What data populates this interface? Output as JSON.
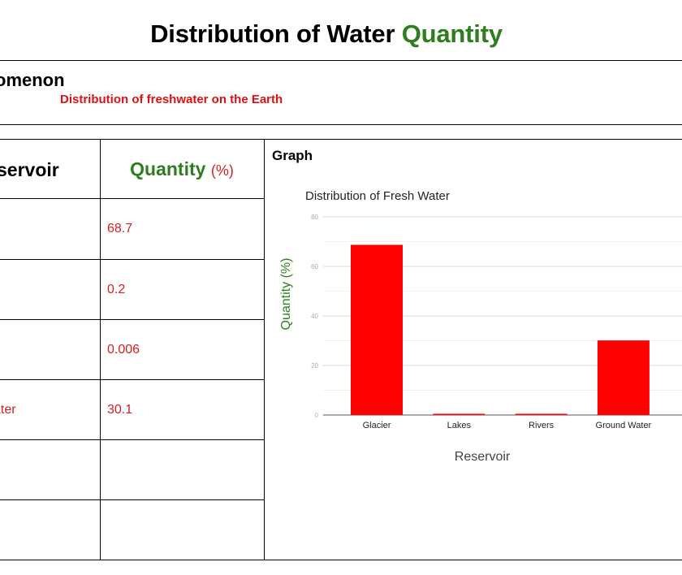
{
  "title": {
    "part1": "Distribution of Water",
    "part2": "Quantity"
  },
  "phenomenon": {
    "label": "omenon",
    "value": "Distribution of freshwater on the Earth"
  },
  "table": {
    "headers": {
      "reservoir": "servoir",
      "quantity": "Quantity",
      "quantity_unit": "(%)"
    },
    "rows": [
      {
        "reservoir": "",
        "quantity": "68.7"
      },
      {
        "reservoir": "",
        "quantity": "0.2"
      },
      {
        "reservoir": "",
        "quantity": "0.006"
      },
      {
        "reservoir": "ater",
        "quantity": "30.1"
      },
      {
        "reservoir": "",
        "quantity": ""
      },
      {
        "reservoir": "",
        "quantity": ""
      }
    ]
  },
  "graph_label": "Graph",
  "colors": {
    "bar": "#ff0000",
    "accent_green": "#2e7d1e",
    "text_red": "#e01010"
  },
  "chart_data": {
    "type": "bar",
    "title": "Distribution of Fresh Water",
    "xlabel": "Reservoir",
    "ylabel": "Quantity (%)",
    "categories": [
      "Glacier",
      "Lakes",
      "Rivers",
      "Ground Water"
    ],
    "values": [
      68.7,
      0.2,
      0.006,
      30.1
    ],
    "ylim": [
      0,
      80
    ],
    "yticks": [
      0,
      20,
      40,
      60,
      80
    ],
    "grid": true,
    "legend": "none"
  }
}
